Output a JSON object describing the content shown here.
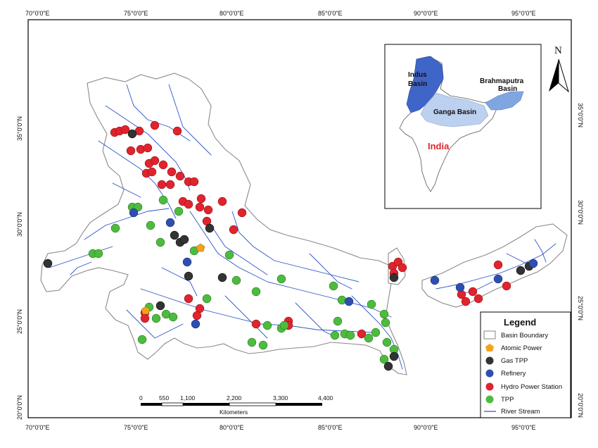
{
  "axes": {
    "top": [
      "70°0'0\"E",
      "75°0'0\"E",
      "80°0'0\"E",
      "85°0'0\"E",
      "90°0'0\"E",
      "95°0'0\"E"
    ],
    "bottom": [
      "70°0'0\"E",
      "75°0'0\"E",
      "80°0'0\"E",
      "85°0'0\"E",
      "90°0'0\"E",
      "95°0'0\"E"
    ],
    "left": [
      "35°0'0\"N",
      "30°0'0\"N",
      "25°0'0\"N",
      "20°0'0\"N"
    ],
    "right": [
      "35°0'0\"N",
      "30°0'0\"N",
      "25°0'0\"N",
      "20°0'0\"N"
    ]
  },
  "inset": {
    "indus": "Indus",
    "indus2": "Basin",
    "brahmaputra": "Brahmaputra",
    "brahmaputra2": "Basin",
    "ganga": "Ganga Basin",
    "india": "India"
  },
  "north_arrow": "N",
  "scale": {
    "ticks": [
      "0",
      "550",
      "1,100",
      "2,200",
      "3,300",
      "4,400"
    ],
    "unit": "Kilometers"
  },
  "legend": {
    "title": "Legend",
    "items": [
      {
        "label": "Basin Boundary",
        "symbol": "box"
      },
      {
        "label": "Atomic Power",
        "symbol": "pentagon",
        "color": "#f4a21c"
      },
      {
        "label": "Gas TPP",
        "symbol": "circle",
        "color": "#333333"
      },
      {
        "label": "Refinery",
        "symbol": "circle",
        "color": "#2f4fb0"
      },
      {
        "label": "Hydro Power Station",
        "symbol": "circle",
        "color": "#e0232d"
      },
      {
        "label": "TPP",
        "symbol": "circle",
        "color": "#4cbc3e"
      },
      {
        "label": "River Stream",
        "symbol": "line",
        "color": "#2d55c8"
      }
    ]
  },
  "colors": {
    "hydro": "#e0232d",
    "tpp": "#4cbc3e",
    "gas": "#333333",
    "refinery": "#2f4fb0",
    "atomic": "#f4a21c",
    "river": "#2d55c8",
    "indus_fill": "#3f65c8",
    "ganga_fill": "#bcd0ef",
    "brahmaputra_fill": "#7fa6e0",
    "india_text": "#e0232d"
  }
}
